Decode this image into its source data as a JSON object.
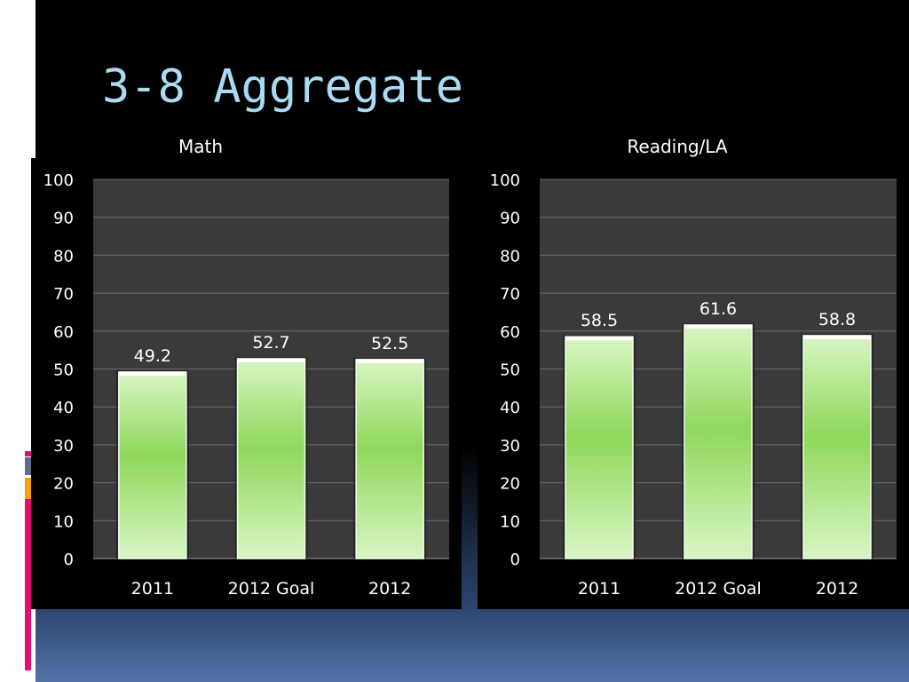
{
  "slide": {
    "title": "3-8 Aggregate",
    "colors": {
      "background": "#000000",
      "title": "#a9dcf3",
      "plot_area": "#3a3a3a",
      "bar_top": "#d8f5c4",
      "bar_mid": "#8fd85a"
    }
  },
  "chart_data": [
    {
      "type": "bar",
      "title": "Math",
      "categories": [
        "2011",
        "2012 Goal",
        "2012"
      ],
      "values": [
        49.2,
        52.7,
        52.5
      ],
      "value_labels": [
        "49.2",
        "52.7",
        "52.5"
      ],
      "ylim": [
        0,
        100
      ],
      "yticks": [
        "0",
        "10",
        "20",
        "30",
        "40",
        "50",
        "60",
        "70",
        "80",
        "90",
        "100"
      ],
      "grid": true,
      "legend": "none"
    },
    {
      "type": "bar",
      "title": "Reading/LA",
      "categories": [
        "2011",
        "2012 Goal",
        "2012"
      ],
      "values": [
        58.5,
        61.6,
        58.8
      ],
      "value_labels": [
        "58.5",
        "61.6",
        "58.8"
      ],
      "ylim": [
        0,
        100
      ],
      "yticks": [
        "0",
        "10",
        "20",
        "30",
        "40",
        "50",
        "60",
        "70",
        "80",
        "90",
        "100"
      ],
      "grid": true,
      "legend": "none"
    }
  ]
}
